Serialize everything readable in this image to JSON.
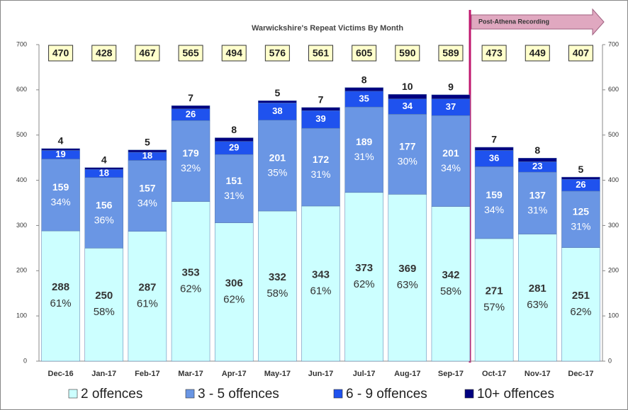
{
  "chart_data": {
    "type": "bar",
    "stacked": true,
    "title": "Warwickshire's Repeat Victims By Month",
    "annotation": "Post-Athena Recording",
    "categories": [
      "Dec-16",
      "Jan-17",
      "Feb-17",
      "Mar-17",
      "Apr-17",
      "May-17",
      "Jun-17",
      "Jul-17",
      "Aug-17",
      "Sep-17",
      "Oct-17",
      "Nov-17",
      "Dec-17"
    ],
    "series": [
      {
        "name": "2 offences",
        "color": "#ccffff",
        "values": [
          288,
          250,
          287,
          353,
          306,
          332,
          343,
          373,
          369,
          342,
          271,
          281,
          251
        ],
        "percent_labels": [
          "61%",
          "58%",
          "61%",
          "62%",
          "62%",
          "58%",
          "61%",
          "62%",
          "63%",
          "58%",
          "57%",
          "63%",
          "62%"
        ]
      },
      {
        "name": "3 - 5 offences",
        "color": "#6a96e4",
        "values": [
          159,
          156,
          157,
          179,
          151,
          201,
          172,
          189,
          177,
          201,
          159,
          137,
          125
        ],
        "percent_labels": [
          "34%",
          "36%",
          "34%",
          "32%",
          "31%",
          "35%",
          "31%",
          "31%",
          "30%",
          "34%",
          "34%",
          "31%",
          "31%"
        ]
      },
      {
        "name": "6 - 9 offences",
        "color": "#1f52ee",
        "values": [
          19,
          18,
          18,
          26,
          29,
          38,
          39,
          35,
          34,
          37,
          36,
          23,
          26
        ]
      },
      {
        "name": "10+ offences",
        "color": "#000080",
        "values": [
          4,
          4,
          5,
          7,
          8,
          5,
          7,
          8,
          10,
          9,
          7,
          8,
          5
        ]
      }
    ],
    "totals": [
      470,
      428,
      467,
      565,
      494,
      576,
      561,
      605,
      590,
      589,
      473,
      449,
      407
    ],
    "ylim": [
      0,
      700
    ],
    "yticks": [
      0,
      100,
      200,
      300,
      400,
      500,
      600,
      700
    ],
    "y2lim": [
      0,
      700
    ],
    "y2ticks": [
      0,
      100,
      200,
      300,
      400,
      500,
      600,
      700
    ],
    "grid": false
  }
}
